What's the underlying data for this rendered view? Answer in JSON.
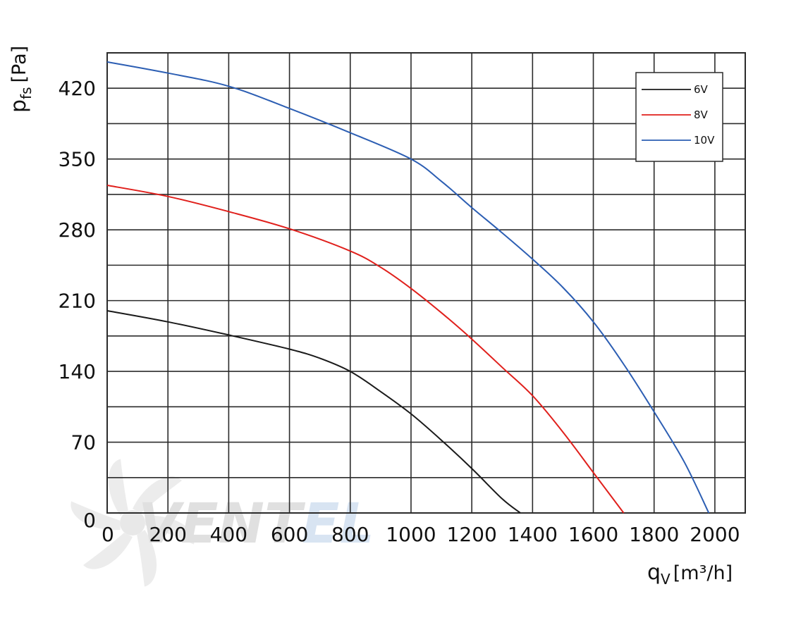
{
  "chart_data": {
    "type": "line",
    "title": "",
    "xlabel": "q",
    "xlabel_sub": "V",
    "xlabel_unit": "[m³/h]",
    "ylabel": "p",
    "ylabel_sub": "fs",
    "ylabel_unit": "[Pa]",
    "xlim": [
      0,
      2100
    ],
    "ylim": [
      0,
      455
    ],
    "x_ticks": [
      0,
      200,
      400,
      600,
      800,
      1000,
      1200,
      1400,
      1600,
      1800,
      2000
    ],
    "x_tick_labels": [
      "0",
      "200",
      "400",
      "600",
      "800",
      "1000",
      "1200",
      "1400",
      "1600",
      "1800",
      "2000"
    ],
    "y_ticks": [
      0,
      70,
      140,
      210,
      280,
      350,
      420
    ],
    "y_tick_labels": [
      "0",
      "70",
      "140",
      "210",
      "280",
      "350",
      "420"
    ],
    "grid": true,
    "grid_x_step": 200,
    "grid_y_step": 35,
    "legend_position": "top-right",
    "series": [
      {
        "name": "6V",
        "color": "#1a1a1a",
        "x": [
          0,
          200,
          400,
          600,
          700,
          800,
          900,
          1000,
          1100,
          1200,
          1300,
          1360
        ],
        "y": [
          200,
          189,
          176,
          162,
          153,
          140,
          120,
          98,
          72,
          44,
          14,
          0
        ]
      },
      {
        "name": "8V",
        "color": "#e0201c",
        "x": [
          0,
          200,
          400,
          600,
          800,
          900,
          1000,
          1100,
          1200,
          1300,
          1400,
          1500,
          1600,
          1700
        ],
        "y": [
          324,
          313,
          298,
          281,
          259,
          243,
          222,
          198,
          172,
          144,
          116,
          80,
          40,
          0
        ]
      },
      {
        "name": "10V",
        "color": "#2c5eb3",
        "x": [
          0,
          200,
          400,
          600,
          800,
          1000,
          1100,
          1200,
          1300,
          1400,
          1500,
          1600,
          1700,
          1800,
          1900,
          1980
        ],
        "y": [
          446,
          435,
          422,
          400,
          376,
          350,
          328,
          302,
          277,
          251,
          223,
          189,
          147,
          100,
          50,
          0
        ]
      }
    ]
  },
  "watermark": {
    "text": "VENTEL",
    "part1": "VENT",
    "part2": "EL",
    "color1": "#c8c8c8",
    "color2": "#b9cfe9",
    "icon": "fan-icon"
  }
}
